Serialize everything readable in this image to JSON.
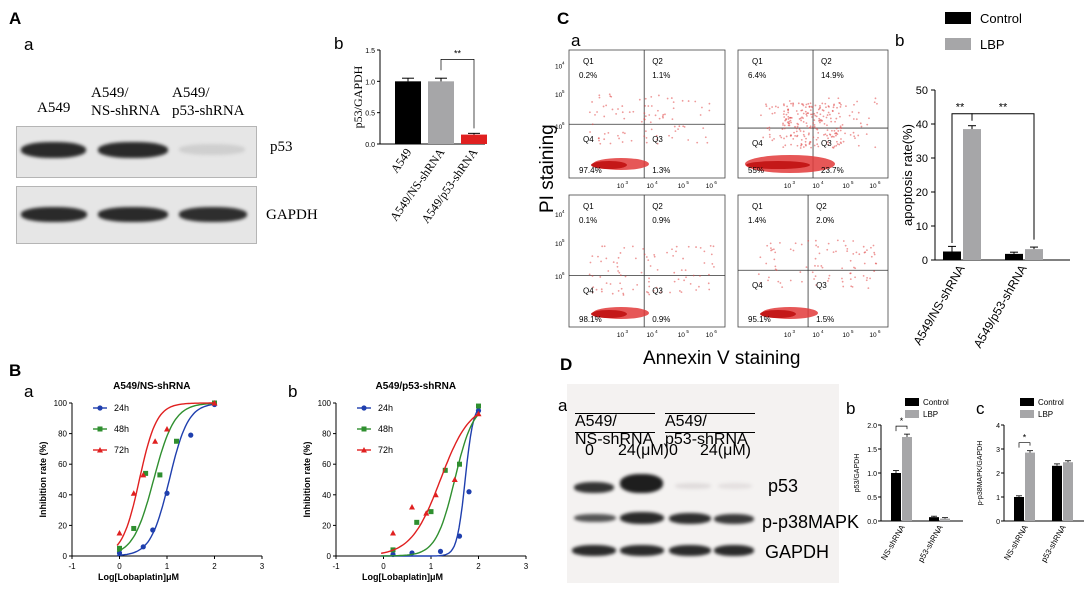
{
  "panel_letters": {
    "A": "A",
    "B": "B",
    "C": "C",
    "D": "D"
  },
  "sub_letters": {
    "a": "a",
    "b": "b",
    "c": "c"
  },
  "blotA": {
    "lanes": [
      "A549",
      "A549/\nNS-shRNA",
      "A549/\np53-shRNA"
    ],
    "p53": "p53",
    "gapdh": "GAPDH",
    "p53_intensity": [
      1.0,
      1.0,
      0.15
    ]
  },
  "flow": {
    "quadrants": [
      {
        "q1": "Q1",
        "q2": "Q2",
        "q3": "Q3",
        "q4": "Q4",
        "v1": "0.2%",
        "v2": "1.1%",
        "v3": "1.3%",
        "v4": "97.4%"
      },
      {
        "q1": "Q1",
        "q2": "Q2",
        "q3": "Q3",
        "q4": "Q4",
        "v1": "6.4%",
        "v2": "14.9%",
        "v3": "23.7%",
        "v4": "55%"
      },
      {
        "q1": "Q1",
        "q2": "Q2",
        "q3": "Q3",
        "q4": "Q4",
        "v1": "0.1%",
        "v2": "0.9%",
        "v3": "0.9%",
        "v4": "98.1%"
      },
      {
        "q1": "Q1",
        "q2": "Q2",
        "q3": "Q3",
        "q4": "Q4",
        "v1": "1.4%",
        "v2": "2.0%",
        "v3": "1.5%",
        "v4": "95.1%"
      }
    ],
    "ticks": [
      "10",
      "10",
      "10",
      "10"
    ],
    "exps": [
      "3",
      "4",
      "5",
      "6"
    ],
    "ylabel": "PI staining",
    "xlabel": "Annexin V staining"
  },
  "blotD": {
    "groups": [
      "A549/\nNS-shRNA",
      "A549/\np53-shRNA"
    ],
    "doses": [
      "0",
      "24(μM)",
      "0",
      "24(μM)"
    ],
    "rows": [
      "p53",
      "p-p38MAPK",
      "GAPDH"
    ]
  },
  "chart_data": [
    {
      "id": "A-b",
      "type": "bar",
      "categories": [
        "A549",
        "A549/NS-shRNA",
        "A549/p53-shRNA"
      ],
      "values": [
        1.0,
        1.0,
        0.15
      ],
      "errors": [
        0.05,
        0.05,
        0.02
      ],
      "colors": [
        "#000000",
        "#a6a6a8",
        "#e02020"
      ],
      "ylabel": "p53/GAPDH",
      "ylim": [
        0,
        1.5
      ],
      "yticks": [
        "0.0",
        "0.5",
        "1.0",
        "1.5"
      ],
      "annotation": "**"
    },
    {
      "id": "B-a",
      "type": "line",
      "title": "A549/NS-shRNA",
      "xlabel": "Log[Lobaplatin]μM",
      "ylabel": "Inhibition rate (%)",
      "xlim": [
        -1,
        3
      ],
      "ylim": [
        0,
        100
      ],
      "xticks": [
        "-1",
        "0",
        "1",
        "2",
        "3"
      ],
      "yticks": [
        "0",
        "20",
        "40",
        "60",
        "80",
        "100"
      ],
      "series": [
        {
          "name": "24h",
          "color": "#1f3fae",
          "marker": "circle",
          "ec50": 1.05,
          "hill": 2.2,
          "points": [
            [
              0,
              2
            ],
            [
              0.5,
              6
            ],
            [
              0.7,
              17
            ],
            [
              1.0,
              41
            ],
            [
              1.5,
              79
            ],
            [
              2.0,
              99
            ]
          ]
        },
        {
          "name": "48h",
          "color": "#2f8f2f",
          "marker": "square",
          "ec50": 0.72,
          "hill": 2.0,
          "points": [
            [
              0,
              5
            ],
            [
              0.3,
              18
            ],
            [
              0.55,
              54
            ],
            [
              0.85,
              53
            ],
            [
              1.2,
              75
            ],
            [
              2.0,
              100
            ]
          ]
        },
        {
          "name": "72h",
          "color": "#e02020",
          "marker": "triangle",
          "ec50": 0.42,
          "hill": 2.4,
          "points": [
            [
              0,
              15
            ],
            [
              0.3,
              41
            ],
            [
              0.5,
              53
            ],
            [
              0.75,
              75
            ],
            [
              1.0,
              83
            ],
            [
              2.0,
              100
            ]
          ]
        }
      ]
    },
    {
      "id": "B-b",
      "type": "line",
      "title": "A549/p53-shRNA",
      "xlabel": "Log[Lobaplatin]μM",
      "ylabel": "Inhibition rate (%)",
      "xlim": [
        -1,
        3
      ],
      "ylim": [
        0,
        100
      ],
      "xticks": [
        "-1",
        "0",
        "1",
        "2",
        "3"
      ],
      "yticks": [
        "0",
        "20",
        "40",
        "60",
        "80",
        "100"
      ],
      "series": [
        {
          "name": "24h",
          "color": "#1f3fae",
          "marker": "circle",
          "ec50": 1.72,
          "hill": 5.0,
          "points": [
            [
              0.2,
              1
            ],
            [
              0.6,
              2
            ],
            [
              1.2,
              3
            ],
            [
              1.6,
              13
            ],
            [
              1.8,
              42
            ],
            [
              2.0,
              95
            ]
          ]
        },
        {
          "name": "48h",
          "color": "#2f8f2f",
          "marker": "square",
          "ec50": 1.5,
          "hill": 2.2,
          "points": [
            [
              0.2,
              4
            ],
            [
              0.7,
              22
            ],
            [
              1.0,
              29
            ],
            [
              1.3,
              56
            ],
            [
              1.6,
              60
            ],
            [
              2.0,
              98
            ]
          ]
        },
        {
          "name": "72h",
          "color": "#e02020",
          "marker": "triangle",
          "ec50": 1.2,
          "hill": 1.4,
          "points": [
            [
              0.2,
              15
            ],
            [
              0.6,
              32
            ],
            [
              0.9,
              28
            ],
            [
              1.1,
              40
            ],
            [
              1.5,
              50
            ],
            [
              2.0,
              93
            ]
          ]
        }
      ]
    },
    {
      "id": "C-b",
      "type": "bar",
      "categories": [
        "A549/NS-shRNA",
        "A549/p53-shRNA"
      ],
      "series": [
        {
          "name": "Control",
          "color": "#000000",
          "values": [
            2.5,
            1.8
          ],
          "errors": [
            1.5,
            0.5
          ]
        },
        {
          "name": "LBP",
          "color": "#a6a6a8",
          "values": [
            38.5,
            3.2
          ],
          "errors": [
            1.0,
            0.6
          ]
        }
      ],
      "ylabel": "apoptosis rate(%)",
      "ylim": [
        0,
        50
      ],
      "yticks": [
        "0",
        "10",
        "20",
        "30",
        "40",
        "50"
      ],
      "annotations": [
        "**",
        "**"
      ]
    },
    {
      "id": "D-b",
      "type": "bar",
      "categories": [
        "NS-shRNA",
        "p53-shRNA"
      ],
      "series": [
        {
          "name": "Control",
          "color": "#000000",
          "values": [
            1.0,
            0.08
          ],
          "errors": [
            0.05,
            0.02
          ]
        },
        {
          "name": "LBP",
          "color": "#a6a6a8",
          "values": [
            1.75,
            0.05
          ],
          "errors": [
            0.06,
            0.02
          ]
        }
      ],
      "ylabel": "p53/GAPDH",
      "ylim": [
        0,
        2.0
      ],
      "yticks": [
        "0.0",
        "0.5",
        "1.0",
        "1.5",
        "2.0"
      ],
      "annotation": "*"
    },
    {
      "id": "D-c",
      "type": "bar",
      "categories": [
        "NS-shRNA",
        "p53-shRNA"
      ],
      "series": [
        {
          "name": "Control",
          "color": "#000000",
          "values": [
            1.0,
            2.3
          ],
          "errors": [
            0.05,
            0.08
          ]
        },
        {
          "name": "LBP",
          "color": "#a6a6a8",
          "values": [
            2.85,
            2.45
          ],
          "errors": [
            0.08,
            0.06
          ]
        }
      ],
      "ylabel": "p-p38MAPK/GAPDH",
      "ylim": [
        0,
        4
      ],
      "yticks": [
        "0",
        "1",
        "2",
        "3",
        "4"
      ],
      "annotation": "*"
    }
  ]
}
